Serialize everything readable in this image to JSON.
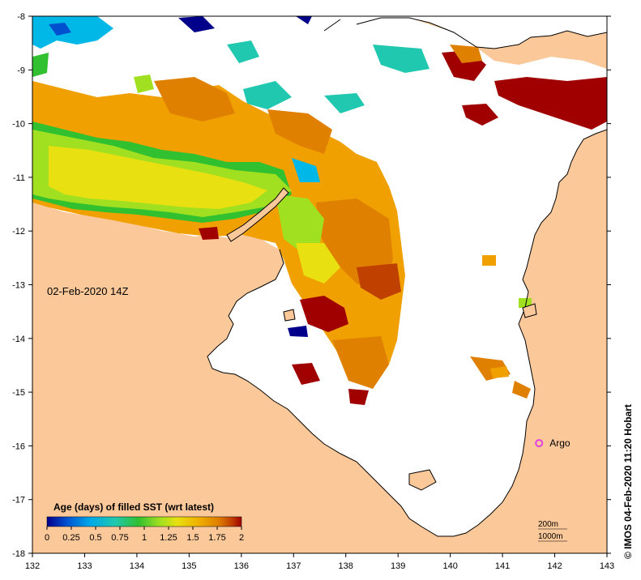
{
  "map": {
    "date_label": "02-Feb-2020 14Z",
    "credit": "© IMOS 04-Feb-2020 11:20 Hobart",
    "float_label": "Argo",
    "contour_labels": [
      "200m",
      "1000m"
    ],
    "x_ticks": [
      132,
      133,
      134,
      135,
      136,
      137,
      138,
      139,
      140,
      141,
      142,
      143
    ],
    "y_ticks": [
      -8,
      -9,
      -10,
      -11,
      -12,
      -13,
      -14,
      -15,
      -16,
      -17,
      -18
    ],
    "lon_range": [
      132,
      143
    ],
    "lat_range": [
      -18,
      -8
    ],
    "float_position": {
      "lon": 141.7,
      "lat": -15.95
    },
    "colors": {
      "land": "#fbc89a",
      "no_data": "#ffffff",
      "float_marker": "#e040e0"
    }
  },
  "colorbar": {
    "title": "Age (days) of filled SST (wrt latest)",
    "tick_labels": [
      "0",
      "0.25",
      "0.5",
      "0.75",
      "1",
      "1.25",
      "1.5",
      "1.75",
      "2"
    ],
    "range": [
      0,
      2
    ],
    "colors": [
      "#00008b",
      "#0050d0",
      "#00a8e8",
      "#20c8b0",
      "#30c030",
      "#a0e020",
      "#e8e010",
      "#f0b000",
      "#e08000",
      "#c04000",
      "#a00000"
    ]
  }
}
